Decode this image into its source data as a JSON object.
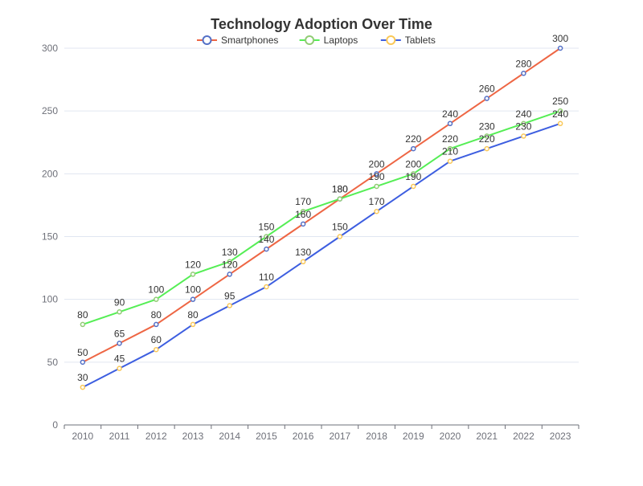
{
  "chart_data": {
    "type": "line",
    "title": "Technology Adoption Over Time",
    "xlabel": "",
    "ylabel": "",
    "categories": [
      "2010",
      "2011",
      "2012",
      "2013",
      "2014",
      "2015",
      "2016",
      "2017",
      "2018",
      "2019",
      "2020",
      "2021",
      "2022",
      "2023"
    ],
    "ylim": [
      0,
      300
    ],
    "yticks": [
      0,
      50,
      100,
      150,
      200,
      250,
      300
    ],
    "grid": true,
    "legend_position": "top",
    "series": [
      {
        "name": "Smartphones",
        "line_color": "#ee6644",
        "marker_color": "#5470c6",
        "values": [
          50,
          65,
          80,
          100,
          120,
          140,
          160,
          180,
          200,
          220,
          240,
          260,
          280,
          300
        ]
      },
      {
        "name": "Laptops",
        "line_color": "#55ee55",
        "marker_color": "#91cc75",
        "values": [
          80,
          90,
          100,
          120,
          130,
          150,
          170,
          180,
          190,
          200,
          220,
          230,
          240,
          250
        ]
      },
      {
        "name": "Tablets",
        "line_color": "#3d5ee0",
        "marker_color": "#fac858",
        "values": [
          30,
          45,
          60,
          80,
          95,
          110,
          130,
          150,
          170,
          190,
          210,
          220,
          230,
          240
        ]
      }
    ]
  }
}
